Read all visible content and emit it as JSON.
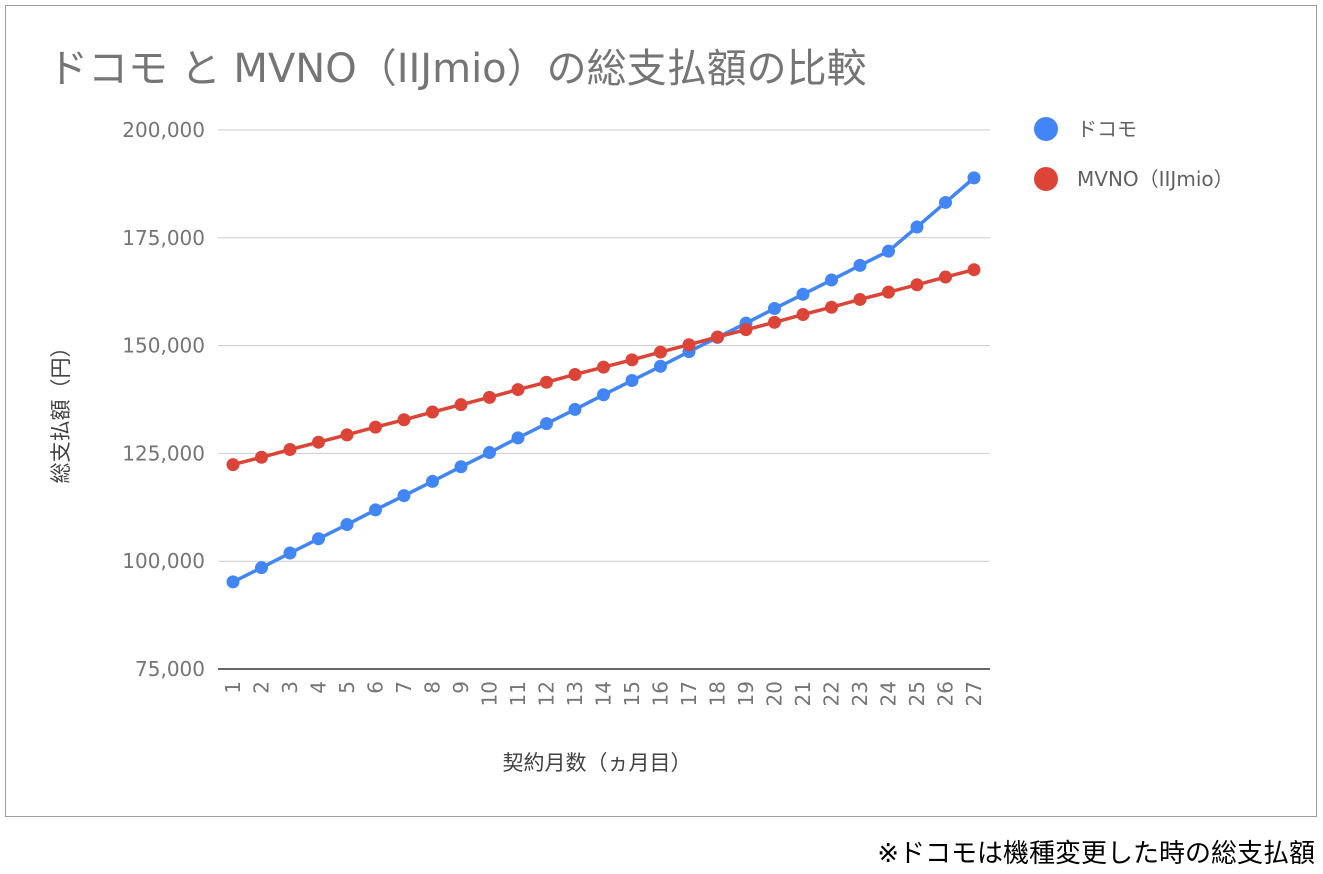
{
  "chart_data": {
    "type": "line",
    "title": "ドコモ と MVNO（IIJmio）の総支払額の比較",
    "xlabel": "契約月数（ヵ月目）",
    "ylabel": "総支払額（円）",
    "categories": [
      "1",
      "2",
      "3",
      "4",
      "5",
      "6",
      "7",
      "8",
      "9",
      "10",
      "11",
      "12",
      "13",
      "14",
      "15",
      "16",
      "17",
      "18",
      "19",
      "20",
      "21",
      "22",
      "23",
      "24",
      "25",
      "26",
      "27"
    ],
    "ylim": [
      75000,
      200000
    ],
    "yticks": [
      "75,000",
      "100,000",
      "125,000",
      "150,000",
      "175,000",
      "200,000"
    ],
    "grid": true,
    "legend_position": "right",
    "series": [
      {
        "name": "ドコモ",
        "color": "#4285f4",
        "values": [
          95200,
          98500,
          101900,
          105200,
          108500,
          111900,
          115200,
          118500,
          121900,
          125200,
          128600,
          131900,
          135200,
          138600,
          141900,
          145200,
          148600,
          151900,
          155200,
          158600,
          161900,
          165200,
          168600,
          171900,
          177500,
          183200,
          188900
        ]
      },
      {
        "name": "MVNO（IIJmio）",
        "color": "#db4437",
        "values": [
          122400,
          124100,
          125900,
          127600,
          129300,
          131100,
          132800,
          134600,
          136300,
          138000,
          139800,
          141500,
          143300,
          145000,
          146700,
          148500,
          150200,
          152000,
          153700,
          155400,
          157200,
          158900,
          160700,
          162400,
          164100,
          165900,
          167600
        ]
      }
    ]
  },
  "footnote": "※ドコモは機種変更した時の総支払額"
}
